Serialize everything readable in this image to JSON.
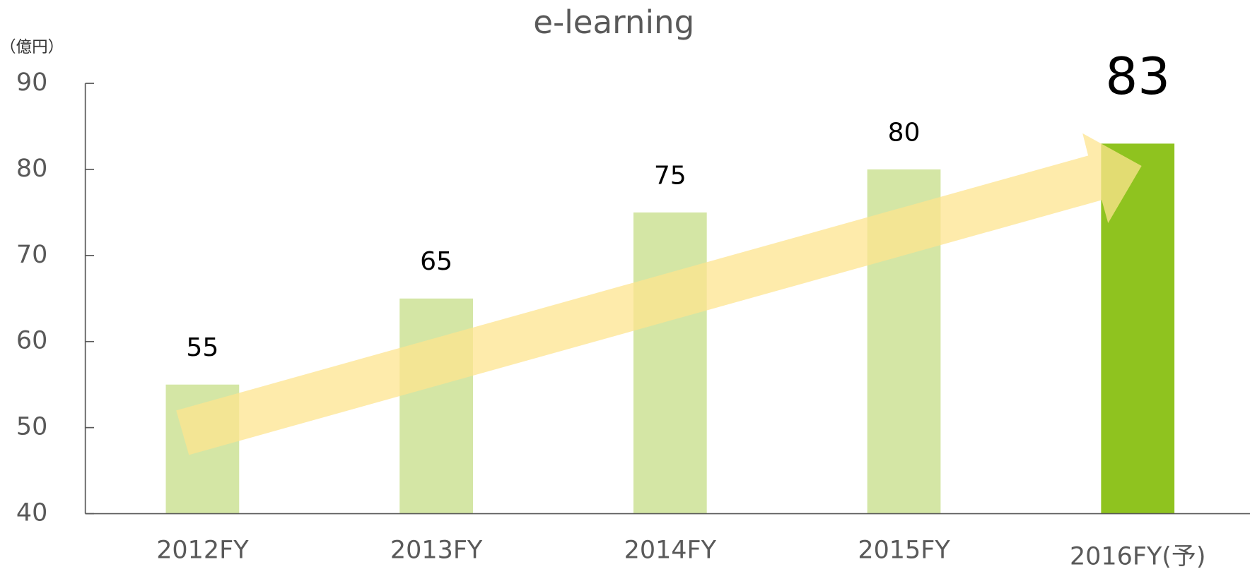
{
  "chart_data": {
    "type": "bar",
    "title": "e-learning",
    "y_unit": "（億円）",
    "categories": [
      "2012FY",
      "2013FY",
      "2014FY",
      "2015FY",
      "2016FY(予)"
    ],
    "values": [
      55,
      65,
      75,
      80,
      83
    ],
    "colors": [
      "#d4e6a5",
      "#d4e6a5",
      "#d4e6a5",
      "#d4e6a5",
      "#8fc31f"
    ],
    "ylim": [
      40,
      90
    ],
    "yticks": [
      40,
      50,
      60,
      70,
      80,
      90
    ]
  }
}
